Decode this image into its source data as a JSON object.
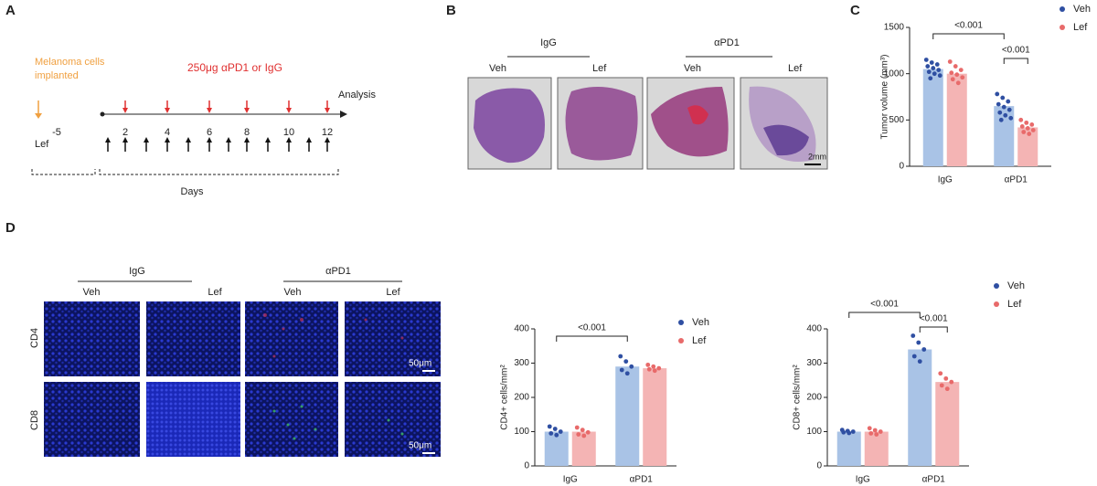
{
  "panel_labels": [
    "A",
    "B",
    "C",
    "D"
  ],
  "timeline": {
    "implant_label": [
      "Melanoma cells",
      "implanted"
    ],
    "treatment_label": "250μg αPD1 or IgG",
    "analysis_label": "Analysis",
    "ticks": [
      -5,
      2,
      4,
      6,
      8,
      10,
      12
    ],
    "drug_label": "Lef",
    "axis_label": "Days"
  },
  "histology": {
    "groups": [
      "IgG",
      "αPD1"
    ],
    "conditions": [
      "Veh",
      "Lef",
      "Veh",
      "Lef"
    ],
    "scale_bar": "2mm"
  },
  "immunofluorescence": {
    "groups": [
      "IgG",
      "αPD1"
    ],
    "conditions": [
      "Veh",
      "Lef",
      "Veh",
      "Lef"
    ],
    "rows": [
      "CD4",
      "CD8"
    ],
    "scale_bars": [
      "50μm",
      "50μm"
    ]
  },
  "chart_data": [
    {
      "type": "bar",
      "y_label": "Tumor volume (mm³)",
      "categories": [
        "IgG",
        "αPD1"
      ],
      "series": [
        {
          "name": "Veh",
          "color": "#a9c3e6",
          "point_color": "#2f4fa2",
          "values": [
            1050,
            650
          ],
          "points": [
            [
              1150,
              1120,
              1100,
              1080,
              1060,
              1040,
              1020,
              1000,
              980,
              950
            ],
            [
              780,
              740,
              700,
              670,
              640,
              610,
              580,
              550,
              520,
              500
            ]
          ]
        },
        {
          "name": "Lef",
          "color": "#f4b4b4",
          "point_color": "#e86a6a",
          "values": [
            1000,
            420
          ],
          "points": [
            [
              1130,
              1080,
              1040,
              1010,
              990,
              960,
              940,
              900
            ],
            [
              500,
              470,
              450,
              430,
              410,
              390,
              370,
              350
            ]
          ]
        }
      ],
      "ylim": [
        0,
        1500
      ],
      "yticks": [
        0,
        500,
        1000,
        1500
      ],
      "annotations": [
        "<0.001",
        "<0.001"
      ]
    },
    {
      "type": "bar",
      "y_label": "CD4+ cells/mm²",
      "categories": [
        "IgG",
        "αPD1"
      ],
      "series": [
        {
          "name": "Veh",
          "color": "#a9c3e6",
          "point_color": "#2f4fa2",
          "values": [
            100,
            290
          ],
          "points": [
            [
              115,
              108,
              100,
              95,
              90
            ],
            [
              320,
              305,
              290,
              280,
              270
            ]
          ]
        },
        {
          "name": "Lef",
          "color": "#f4b4b4",
          "point_color": "#e86a6a",
          "values": [
            100,
            285
          ],
          "points": [
            [
              112,
              105,
              98,
              92,
              88
            ],
            [
              295,
              290,
              285,
              282,
              278
            ]
          ]
        }
      ],
      "ylim": [
        0,
        400
      ],
      "yticks": [
        0,
        100,
        200,
        300,
        400
      ],
      "annotations": [
        "<0.001"
      ]
    },
    {
      "type": "bar",
      "y_label": "CD8+ cells/mm²",
      "categories": [
        "IgG",
        "αPD1"
      ],
      "series": [
        {
          "name": "Veh",
          "color": "#a9c3e6",
          "point_color": "#2f4fa2",
          "values": [
            100,
            340
          ],
          "points": [
            [
              105,
              102,
              100,
              98,
              96
            ],
            [
              380,
              360,
              340,
              320,
              305
            ]
          ]
        },
        {
          "name": "Lef",
          "color": "#f4b4b4",
          "point_color": "#e86a6a",
          "values": [
            100,
            245
          ],
          "points": [
            [
              110,
              104,
              100,
              95,
              92
            ],
            [
              270,
              255,
              245,
              235,
              225
            ]
          ]
        }
      ],
      "ylim": [
        0,
        400
      ],
      "yticks": [
        0,
        100,
        200,
        300,
        400
      ],
      "annotations": [
        "<0.001",
        "<0.001"
      ]
    }
  ]
}
